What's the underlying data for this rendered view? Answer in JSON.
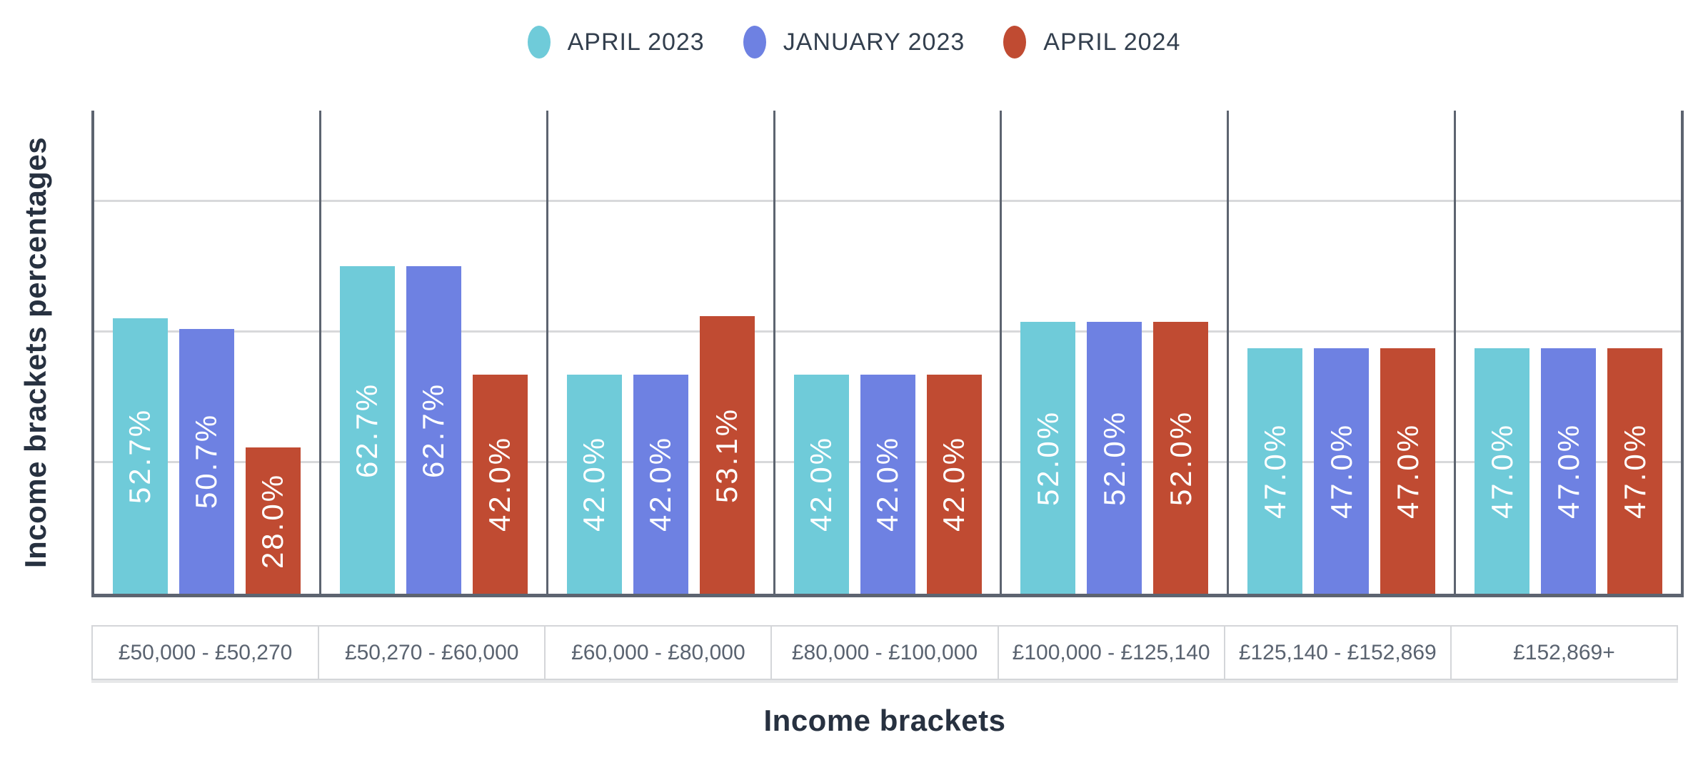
{
  "legend": {
    "items": [
      {
        "label": "APRIL 2023",
        "color": "#6fcbd9"
      },
      {
        "label": "JANUARY 2023",
        "color": "#6e81e2"
      },
      {
        "label": "APRIL 2024",
        "color": "#c04b32"
      }
    ]
  },
  "axes": {
    "y_title": "Income brackets percentages",
    "x_title": "Income brackets"
  },
  "chart_data": {
    "type": "bar",
    "title": "",
    "xlabel": "Income brackets",
    "ylabel": "Income brackets percentages",
    "categories": [
      "£50,000 - £50,270",
      "£50,270 - £60,000",
      "£60,000 - £80,000",
      "£80,000 - £100,000",
      "£100,000 - £125,140",
      "£125,140 - £152,869",
      "£152,869+"
    ],
    "series": [
      {
        "name": "APRIL 2023",
        "color": "#6fcbd9",
        "values": [
          52.7,
          62.7,
          42.0,
          42.0,
          52.0,
          47.0,
          47.0
        ]
      },
      {
        "name": "JANUARY 2023",
        "color": "#6e81e2",
        "values": [
          50.7,
          62.7,
          42.0,
          42.0,
          52.0,
          47.0,
          47.0
        ]
      },
      {
        "name": "APRIL 2024",
        "color": "#c04b32",
        "values": [
          28.0,
          42.0,
          53.1,
          42.0,
          52.0,
          47.0,
          47.0
        ]
      }
    ],
    "bar_value_labels": [
      [
        "52.7%",
        "62.7%",
        "42.0%",
        "42.0%",
        "52.0%",
        "47.0%",
        "47.0%"
      ],
      [
        "50.7%",
        "62.7%",
        "42.0%",
        "42.0%",
        "52.0%",
        "47.0%",
        "47.0%"
      ],
      [
        "28.0%",
        "42.0%",
        "53.1%",
        "42.0%",
        "52.0%",
        "47.0%",
        "47.0%"
      ]
    ],
    "value_label_rotation": -90,
    "ylim": [
      0,
      92.5
    ],
    "gridline_values": [
      25,
      50,
      75
    ],
    "grid": true,
    "y_tick_labels_shown": false,
    "legend_position": "top-center"
  },
  "colors": {
    "axis_line": "#5d6470",
    "gridline": "#d8d9db",
    "label_box_border": "#d4d6d9",
    "category_text": "#5a6370",
    "title_text": "#273140",
    "legend_text": "#333f4e",
    "bar_label_text": "#ffffff",
    "background": "#ffffff"
  }
}
